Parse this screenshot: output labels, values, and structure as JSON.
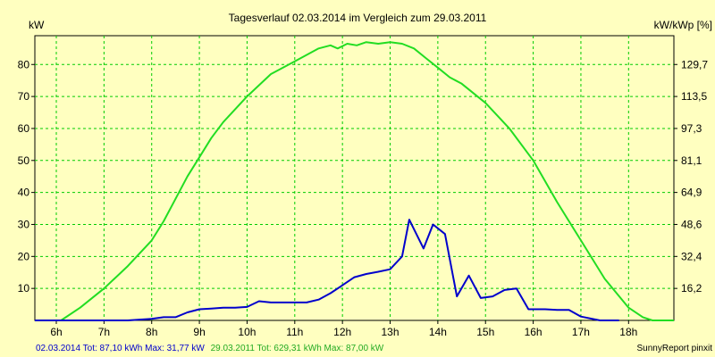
{
  "chart_data": {
    "type": "line",
    "title": "Tagesverlauf 02.03.2014 im Vergleich zum 29.03.2011",
    "ylabel_left": "kW",
    "ylabel_right": "kW/kWp [%]",
    "xlim": [
      5.55,
      18.95
    ],
    "ylim": [
      0,
      89
    ],
    "x_ticks": [
      6,
      7,
      8,
      9,
      10,
      11,
      12,
      13,
      14,
      15,
      16,
      17,
      18
    ],
    "x_tick_labels": [
      "6h",
      "7h",
      "8h",
      "9h",
      "10h",
      "11h",
      "12h",
      "13h",
      "14h",
      "15h",
      "16h",
      "17h",
      "18h"
    ],
    "y_ticks": [
      10,
      20,
      30,
      40,
      50,
      60,
      70,
      80
    ],
    "y_tick_labels": [
      "10",
      "20",
      "30",
      "40",
      "50",
      "60",
      "70",
      "80"
    ],
    "y2_ticks": [
      8.0,
      16.0,
      24.0,
      32.0,
      40.0,
      48.0,
      56.0,
      64.0
    ],
    "y2_tick_labels": [
      "16,2",
      "32,4",
      "48,6",
      "64,9",
      "81,1",
      "97,3",
      "113,5",
      "129,7"
    ],
    "grid": true,
    "grid_color": "#00cc00",
    "background_color": "#ffffc0",
    "series": [
      {
        "name": "29.03.2011",
        "color": "#22dd22",
        "x": [
          5.55,
          6.1,
          6.5,
          7.0,
          7.5,
          8.0,
          8.25,
          8.5,
          8.75,
          9.0,
          9.25,
          9.5,
          10.0,
          10.5,
          11.0,
          11.5,
          11.75,
          11.9,
          12.1,
          12.3,
          12.5,
          12.75,
          13.0,
          13.25,
          13.5,
          13.75,
          14.0,
          14.25,
          14.5,
          15.0,
          15.5,
          16.0,
          16.5,
          17.0,
          17.5,
          18.0,
          18.3,
          18.5,
          18.95
        ],
        "y": [
          0,
          0,
          4,
          10,
          17,
          25,
          31,
          38,
          45,
          51,
          57,
          62,
          70,
          77,
          81,
          85,
          86,
          85,
          86.5,
          86,
          87,
          86.5,
          87,
          86.5,
          85,
          82,
          79,
          76,
          74,
          68,
          60,
          50,
          37,
          25,
          13,
          4,
          1,
          0,
          0
        ]
      },
      {
        "name": "02.03.2014",
        "color": "#0000cc",
        "x": [
          5.55,
          6.8,
          7.5,
          8.0,
          8.25,
          8.5,
          8.75,
          9.0,
          9.25,
          9.5,
          9.75,
          10.0,
          10.25,
          10.5,
          10.75,
          11.0,
          11.25,
          11.5,
          11.75,
          12.0,
          12.25,
          12.5,
          12.75,
          13.0,
          13.25,
          13.4,
          13.7,
          13.9,
          14.15,
          14.4,
          14.65,
          14.9,
          15.15,
          15.4,
          15.65,
          15.9,
          16.25,
          16.5,
          16.75,
          17.0,
          17.4,
          17.8
        ],
        "y": [
          0,
          0,
          0,
          0.5,
          1,
          1,
          2.5,
          3.5,
          3.7,
          4,
          4,
          4.2,
          6,
          5.6,
          5.6,
          5.6,
          5.6,
          6.5,
          8.5,
          11,
          13.5,
          14.5,
          15.2,
          16,
          20,
          31.5,
          22.5,
          30,
          27,
          7.5,
          14,
          7,
          7.5,
          9.5,
          10,
          3.5,
          3.5,
          3.3,
          3.3,
          1.2,
          0,
          0
        ]
      }
    ]
  },
  "footer": {
    "left_2014": "02.03.2014 Tot: 87,10 kWh Max: 31,77 kW",
    "left_2011": "29.03.2011 Tot: 629,31 kWh Max: 87,00 kW",
    "right": "SunnyReport pinxit"
  }
}
